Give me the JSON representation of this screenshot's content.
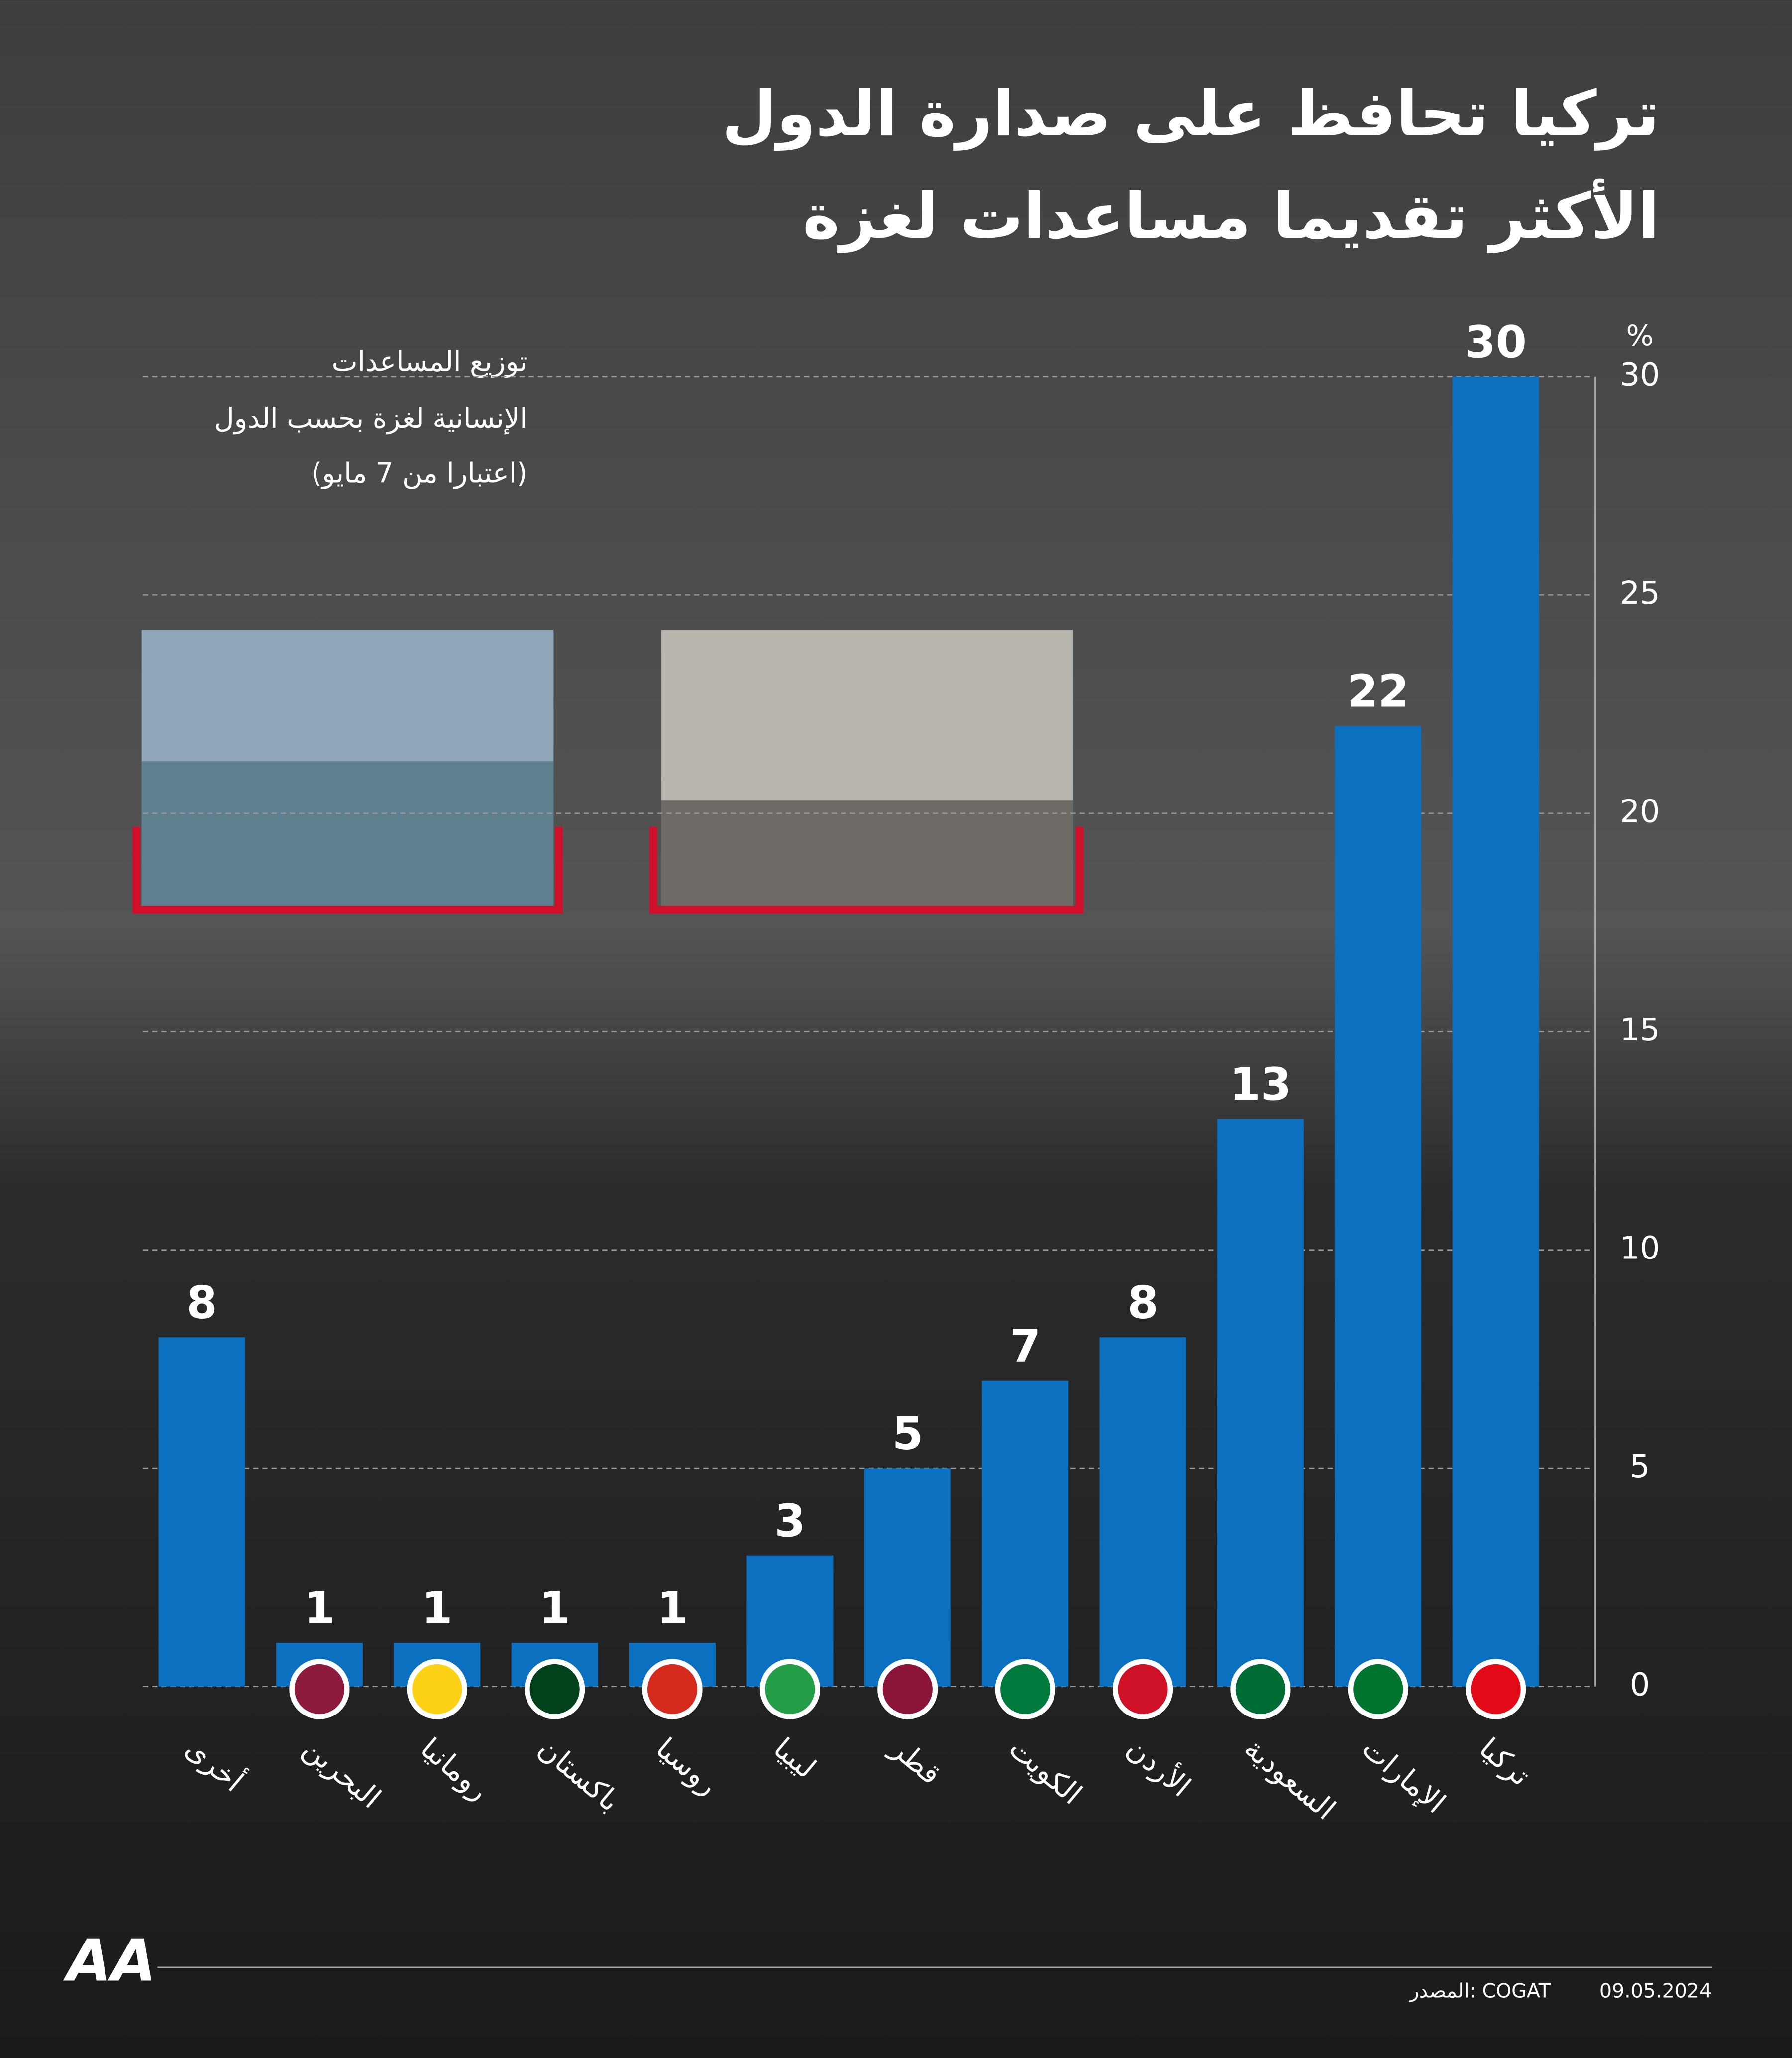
{
  "chart_data": {
    "type": "bar",
    "title": [
      "تركيا تحافظ على صدارة الدول",
      "الأكثر تقديما مساعدات لغزة"
    ],
    "subtitle": [
      "توزيع المساعدات",
      "الإنسانية لغزة بحسب الدول",
      "(اعتبارا من 7 مايو)"
    ],
    "y_unit": "%",
    "categories": [
      "أخرى",
      "البحرين",
      "رومانيا",
      "باكستان",
      "روسيا",
      "ليبيا",
      "قطر",
      "الكويت",
      "الأردن",
      "السعودية",
      "الإمارات",
      "تركيا"
    ],
    "values": [
      8,
      1,
      1,
      1,
      1,
      3,
      5,
      7,
      8,
      13,
      22,
      30
    ],
    "color": "#0b70bf",
    "ylim": [
      0,
      30
    ],
    "yticks": [
      0,
      5,
      10,
      15,
      20,
      25,
      30
    ],
    "grid": true,
    "source": "المصدر: COGAT",
    "date": "09.05.2024",
    "logo": "AA"
  }
}
